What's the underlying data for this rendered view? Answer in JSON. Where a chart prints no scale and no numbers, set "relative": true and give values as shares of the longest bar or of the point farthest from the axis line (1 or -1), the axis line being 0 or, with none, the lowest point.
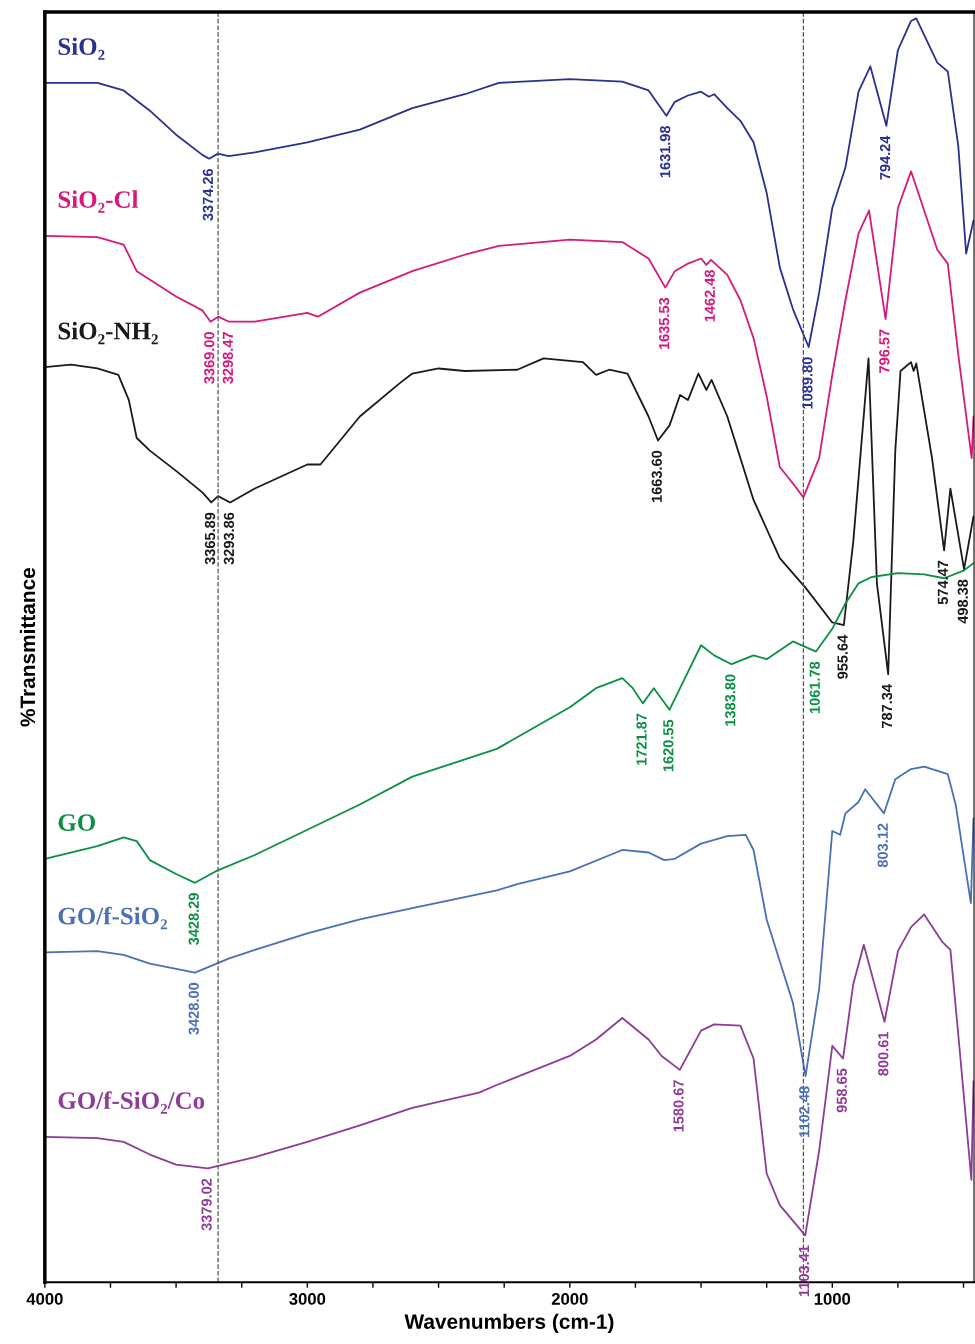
{
  "chart_data": {
    "type": "line",
    "relative": true,
    "xlabel": "Wavenumbers (cm-1)",
    "ylabel": "%Transmittance",
    "xlim": [
      4000,
      460
    ],
    "xticks": [
      4000,
      {
        "value": 3750,
        "label": null
      },
      {
        "value": 3500,
        "label": null
      },
      {
        "value": 3250,
        "label": null
      },
      3000,
      {
        "value": 2750,
        "label": null
      },
      {
        "value": 2500,
        "label": null
      },
      {
        "value": 2250,
        "label": null
      },
      2000,
      {
        "value": 1750,
        "label": null
      },
      {
        "value": 1500,
        "label": null
      },
      {
        "value": 1250,
        "label": null
      },
      1000,
      {
        "value": 750,
        "label": null
      },
      {
        "value": 500,
        "label": null
      }
    ],
    "grid": false,
    "legend": false,
    "marker": "none",
    "line_style": "solid",
    "ref_lines": [
      {
        "axis": "x",
        "value": 3340,
        "color": "#555555",
        "line_style": "dashed"
      },
      {
        "axis": "x",
        "value": 1110,
        "color": "#555555",
        "line_style": "dashed"
      }
    ],
    "series": [
      {
        "name": "SiO₂",
        "color": "#2b2f8f",
        "x": [
          4000,
          3800,
          3700,
          3600,
          3500,
          3400,
          3374,
          3340,
          3300,
          3200,
          3000,
          2800,
          2600,
          2400,
          2270,
          2000,
          1800,
          1700,
          1632,
          1600,
          1550,
          1500,
          1470,
          1450,
          1400,
          1350,
          1300,
          1250,
          1200,
          1150,
          1090,
          1050,
          1000,
          950,
          900,
          855,
          794,
          750,
          700,
          680,
          600,
          560,
          520,
          490,
          462
        ],
        "values": [
          0.949,
          0.949,
          0.943,
          0.927,
          0.908,
          0.892,
          0.889,
          0.893,
          0.891,
          0.894,
          0.902,
          0.912,
          0.929,
          0.94,
          0.949,
          0.952,
          0.95,
          0.943,
          0.923,
          0.934,
          0.939,
          0.942,
          0.938,
          0.94,
          0.929,
          0.919,
          0.902,
          0.862,
          0.803,
          0.77,
          0.74,
          0.783,
          0.85,
          0.882,
          0.942,
          0.962,
          0.915,
          0.975,
          0.998,
          1.0,
          0.965,
          0.958,
          0.899,
          0.814,
          0.84
        ]
      },
      {
        "name": "SiO₂-Cl",
        "color": "#d6197a",
        "x": [
          4000,
          3800,
          3700,
          3650,
          3500,
          3400,
          3369,
          3340,
          3298,
          3200,
          3000,
          2960,
          2800,
          2600,
          2400,
          2270,
          2000,
          1800,
          1700,
          1636,
          1600,
          1550,
          1500,
          1480,
          1462,
          1400,
          1350,
          1300,
          1250,
          1200,
          1150,
          1110,
          1050,
          1000,
          950,
          900,
          860,
          797,
          750,
          700,
          600,
          560,
          520,
          469,
          462
        ],
        "values": [
          0.828,
          0.827,
          0.821,
          0.8,
          0.78,
          0.769,
          0.76,
          0.764,
          0.76,
          0.76,
          0.767,
          0.764,
          0.783,
          0.8,
          0.813,
          0.82,
          0.825,
          0.823,
          0.81,
          0.787,
          0.8,
          0.806,
          0.81,
          0.805,
          0.809,
          0.797,
          0.777,
          0.747,
          0.701,
          0.645,
          0.632,
          0.621,
          0.652,
          0.718,
          0.777,
          0.83,
          0.848,
          0.762,
          0.85,
          0.879,
          0.817,
          0.806,
          0.734,
          0.652,
          0.685
        ]
      },
      {
        "name": "SiO₂-NH₂",
        "color": "#1a1a1a",
        "x": [
          4000,
          3900,
          3800,
          3720,
          3680,
          3650,
          3600,
          3500,
          3400,
          3366,
          3340,
          3294,
          3200,
          3000,
          2950,
          2800,
          2650,
          2600,
          2500,
          2400,
          2200,
          2100,
          1950,
          1900,
          1850,
          1780,
          1700,
          1664,
          1620,
          1580,
          1550,
          1510,
          1480,
          1460,
          1400,
          1300,
          1200,
          1100,
          1000,
          956,
          920,
          862,
          830,
          787,
          760,
          740,
          700,
          690,
          680,
          620,
          574,
          550,
          498,
          462
        ],
        "values": [
          0.724,
          0.726,
          0.723,
          0.718,
          0.698,
          0.668,
          0.658,
          0.642,
          0.625,
          0.617,
          0.622,
          0.617,
          0.628,
          0.647,
          0.647,
          0.685,
          0.711,
          0.719,
          0.723,
          0.721,
          0.722,
          0.731,
          0.728,
          0.718,
          0.722,
          0.719,
          0.685,
          0.666,
          0.678,
          0.702,
          0.698,
          0.719,
          0.706,
          0.714,
          0.685,
          0.619,
          0.573,
          0.549,
          0.522,
          0.52,
          0.586,
          0.731,
          0.553,
          0.481,
          0.658,
          0.721,
          0.728,
          0.721,
          0.727,
          0.652,
          0.579,
          0.628,
          0.564,
          0.606
        ]
      },
      {
        "name": "GO",
        "color": "#0b8f45",
        "x": [
          4000,
          3800,
          3700,
          3650,
          3600,
          3500,
          3428,
          3350,
          3200,
          3000,
          2800,
          2600,
          2278,
          2000,
          1900,
          1800,
          1760,
          1722,
          1680,
          1620,
          1580,
          1500,
          1450,
          1384,
          1300,
          1250,
          1150,
          1062,
          1000,
          950,
          900,
          850,
          750,
          650,
          574,
          500,
          462
        ],
        "values": [
          0.335,
          0.345,
          0.352,
          0.349,
          0.334,
          0.323,
          0.316,
          0.325,
          0.338,
          0.358,
          0.378,
          0.4,
          0.422,
          0.455,
          0.47,
          0.478,
          0.47,
          0.458,
          0.47,
          0.453,
          0.47,
          0.504,
          0.496,
          0.489,
          0.496,
          0.493,
          0.507,
          0.499,
          0.517,
          0.537,
          0.553,
          0.558,
          0.561,
          0.56,
          0.557,
          0.563,
          0.569
        ]
      },
      {
        "name": "GO/f-SiO₂",
        "color": "#4a6fb5",
        "x": [
          4000,
          3800,
          3700,
          3600,
          3428,
          3300,
          3200,
          3000,
          2800,
          2600,
          2278,
          2200,
          2000,
          1800,
          1700,
          1640,
          1600,
          1500,
          1400,
          1330,
          1300,
          1250,
          1200,
          1150,
          1102,
          1050,
          1000,
          970,
          950,
          900,
          875,
          803,
          760,
          700,
          650,
          560,
          530,
          472,
          462
        ],
        "values": [
          0.261,
          0.262,
          0.259,
          0.252,
          0.245,
          0.256,
          0.263,
          0.276,
          0.287,
          0.296,
          0.31,
          0.315,
          0.325,
          0.342,
          0.34,
          0.334,
          0.335,
          0.347,
          0.353,
          0.354,
          0.342,
          0.287,
          0.254,
          0.221,
          0.163,
          0.232,
          0.357,
          0.354,
          0.371,
          0.38,
          0.39,
          0.371,
          0.398,
          0.406,
          0.408,
          0.402,
          0.378,
          0.3,
          0.367
        ]
      },
      {
        "name": "GO/f-SiO₂/Co",
        "color": "#8e3b97",
        "x": [
          4000,
          3800,
          3700,
          3600,
          3500,
          3379,
          3200,
          3000,
          2800,
          2600,
          2346,
          2278,
          2000,
          1900,
          1800,
          1700,
          1650,
          1581,
          1500,
          1450,
          1350,
          1300,
          1250,
          1200,
          1103,
          1050,
          1000,
          959,
          920,
          880,
          801,
          750,
          700,
          650,
          580,
          550,
          520,
          470,
          462
        ],
        "values": [
          0.115,
          0.114,
          0.111,
          0.101,
          0.093,
          0.09,
          0.099,
          0.111,
          0.124,
          0.138,
          0.15,
          0.156,
          0.179,
          0.192,
          0.209,
          0.192,
          0.179,
          0.168,
          0.199,
          0.204,
          0.203,
          0.177,
          0.086,
          0.061,
          0.037,
          0.104,
          0.187,
          0.177,
          0.236,
          0.267,
          0.206,
          0.262,
          0.281,
          0.291,
          0.269,
          0.263,
          0.196,
          0.081,
          0.159
        ]
      }
    ],
    "annotations": [
      {
        "text": "3374.26",
        "x": 3374,
        "y": 0.889
      },
      {
        "text": "1631.98",
        "x": 1632,
        "y": 0.923
      },
      {
        "text": "1089.80",
        "x": 1090,
        "y": 0.74
      },
      {
        "text": "794.24",
        "x": 794,
        "y": 0.915
      },
      {
        "text": "3369.00",
        "x": 3369,
        "y": 0.76
      },
      {
        "text": "3298.47",
        "x": 3298,
        "y": 0.76
      },
      {
        "text": "1635.53",
        "x": 1636,
        "y": 0.787
      },
      {
        "text": "1462.48",
        "x": 1462,
        "y": 0.809
      },
      {
        "text": "796.57",
        "x": 797,
        "y": 0.762
      },
      {
        "text": "3365.89",
        "x": 3366,
        "y": 0.617
      },
      {
        "text": "3293.86",
        "x": 3294,
        "y": 0.617
      },
      {
        "text": "1663.60",
        "x": 1664,
        "y": 0.666
      },
      {
        "text": "955.64",
        "x": 956,
        "y": 0.52
      },
      {
        "text": "787.34",
        "x": 787,
        "y": 0.481
      },
      {
        "text": "574.47",
        "x": 574,
        "y": 0.579
      },
      {
        "text": "498.38",
        "x": 498,
        "y": 0.564
      },
      {
        "text": "3428.29",
        "x": 3428,
        "y": 0.316
      },
      {
        "text": "1721.87",
        "x": 1722,
        "y": 0.458
      },
      {
        "text": "1620.55",
        "x": 1620,
        "y": 0.453
      },
      {
        "text": "1383.80",
        "x": 1384,
        "y": 0.489
      },
      {
        "text": "1061.78",
        "x": 1062,
        "y": 0.499
      },
      {
        "text": "3428.00",
        "x": 3428,
        "y": 0.245
      },
      {
        "text": "1102.48",
        "x": 1102,
        "y": 0.163
      },
      {
        "text": "803.12",
        "x": 803,
        "y": 0.371
      },
      {
        "text": "3379.02",
        "x": 3379,
        "y": 0.09
      },
      {
        "text": "1580.67",
        "x": 1581,
        "y": 0.168
      },
      {
        "text": "1103.41",
        "x": 1103,
        "y": 0.037
      },
      {
        "text": "958.65",
        "x": 959,
        "y": 0.177
      },
      {
        "text": "800.61",
        "x": 801,
        "y": 0.206
      }
    ]
  }
}
